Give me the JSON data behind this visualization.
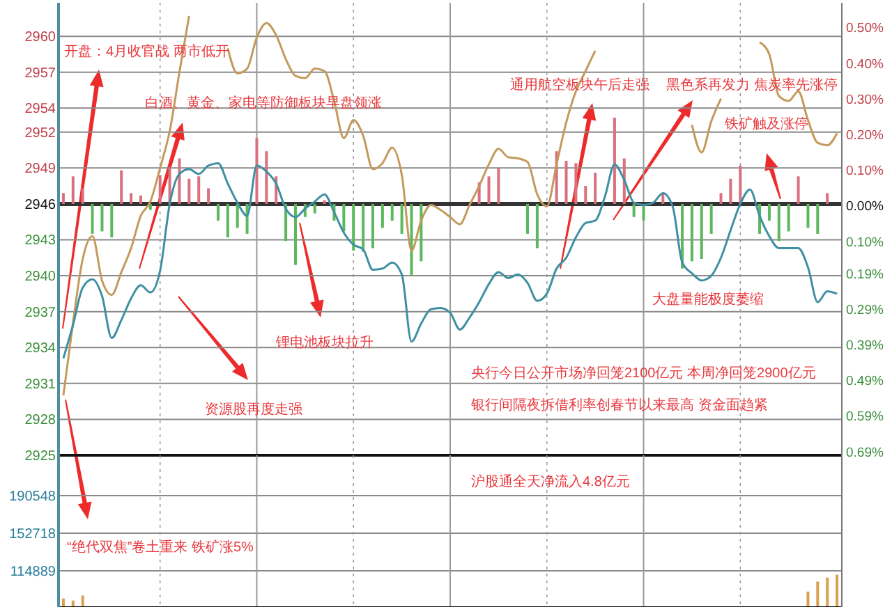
{
  "chart_data": [
    {
      "type": "line",
      "categories": [
        null,
        null,
        null,
        null,
        null,
        null,
        null,
        null,
        null,
        null,
        null,
        null,
        null,
        null,
        null,
        null,
        null,
        null,
        null,
        null,
        null,
        null,
        null,
        null,
        null,
        null,
        null,
        null,
        null,
        null,
        null,
        null,
        null,
        null,
        null,
        null,
        null,
        null,
        null,
        null,
        null,
        null,
        null,
        null,
        null,
        null,
        null,
        null,
        null,
        null,
        null,
        null,
        null,
        null,
        null,
        null,
        null,
        null,
        null,
        null,
        null,
        null,
        null,
        null,
        null,
        null,
        null,
        null,
        null,
        null,
        null,
        null,
        null,
        null,
        null,
        null,
        null,
        null,
        null,
        null,
        null
      ],
      "ylim": [
        2925,
        2962.8
      ],
      "yticks": [
        2925,
        2928,
        2931,
        2934,
        2937,
        2940,
        2943,
        2946,
        2949,
        2952,
        2954,
        2957,
        2960
      ],
      "y2lim": [
        -0.7,
        0.57
      ],
      "y2ticks": [
        {
          "value": -0.69,
          "label": "0.69%"
        },
        {
          "value": -0.59,
          "label": "0.59%"
        },
        {
          "value": -0.49,
          "label": "0.49%"
        },
        {
          "value": -0.39,
          "label": "0.39%"
        },
        {
          "value": -0.29,
          "label": "0.29%"
        },
        {
          "value": -0.19,
          "label": "0.19%"
        },
        {
          "value": -0.1,
          "label": "0.10%"
        },
        {
          "value": 0,
          "label": "0.00%"
        },
        {
          "value": 0.1,
          "label": "0.10%"
        },
        {
          "value": 0.2,
          "label": "0.20%"
        },
        {
          "value": 0.3,
          "label": "0.30%"
        },
        {
          "value": 0.4,
          "label": "0.40%"
        },
        {
          "value": 0.5,
          "label": "0.50%"
        }
      ],
      "grid": true,
      "tick_labels": "y",
      "ref_lines": [
        {
          "axis": "y",
          "value": 2946,
          "color": "#333333"
        }
      ],
      "series": [
        {
          "type": "bar",
          "base": [
            2946,
            2946,
            2946,
            2946,
            2946,
            2946,
            2946,
            2946,
            2946,
            2946,
            2946,
            2946,
            2946,
            2946,
            2946,
            2946,
            2946,
            2946,
            2946,
            2946,
            2946,
            2946,
            2946,
            2946,
            2946,
            2946,
            2946,
            2946,
            2946,
            2946,
            2946,
            2946,
            2946,
            2946,
            2946,
            2946,
            2946,
            2946,
            null,
            null,
            null,
            null,
            null,
            2946,
            2946,
            2946,
            null,
            null,
            2946,
            2946,
            null,
            2946,
            2946,
            2946,
            2946,
            2946,
            null,
            2946,
            2946,
            2946,
            2946,
            null,
            2946,
            null,
            2946,
            2946,
            2946,
            2946,
            2946,
            2946,
            2946,
            null,
            2946,
            2946,
            2946,
            2946,
            2946,
            2946,
            2946,
            2946,
            null
          ],
          "values": [
            0.9,
            2.3,
            1.3,
            -2.5,
            -2.3,
            -2.8,
            2.8,
            0.9,
            0.7,
            -0.5,
            2.4,
            3.0,
            3.8,
            2.1,
            2.3,
            1.3,
            -1.4,
            -2.8,
            -2.0,
            -2.5,
            5.5,
            4.4,
            2.3,
            -3.1,
            -5.1,
            -1.1,
            -0.8,
            0.3,
            -1.4,
            -2.3,
            -3.9,
            -4.0,
            -3.7,
            -2.0,
            -1.4,
            -2.5,
            -6.0,
            -4.8,
            null,
            null,
            null,
            null,
            null,
            1.8,
            2.3,
            3.0,
            null,
            null,
            -2.5,
            -3.7,
            null,
            4.4,
            3.6,
            3.4,
            1.5,
            2.6,
            null,
            7.2,
            3.8,
            -1.1,
            -1.4,
            null,
            0.9,
            null,
            -5.4,
            -4.8,
            -4.6,
            -2.5,
            0.9,
            2.1,
            3.2,
            null,
            -2.5,
            -1.4,
            -3.1,
            -2.3,
            2.3,
            -2.0,
            -2.5,
            0.9,
            null
          ],
          "colors": [
            "#d9707e",
            "#d9707e",
            "#d9707e",
            "#5cb85c",
            "#5cb85c",
            "#5cb85c",
            "#d9707e",
            "#d9707e",
            "#d9707e",
            "#5cb85c",
            "#d9707e",
            "#d9707e",
            "#d9707e",
            "#d9707e",
            "#d9707e",
            "#d9707e",
            "#5cb85c",
            "#5cb85c",
            "#5cb85c",
            "#5cb85c",
            "#d9707e",
            "#d9707e",
            "#d9707e",
            "#5cb85c",
            "#5cb85c",
            "#5cb85c",
            "#5cb85c",
            "#d9707e",
            "#5cb85c",
            "#5cb85c",
            "#5cb85c",
            "#5cb85c",
            "#5cb85c",
            "#5cb85c",
            "#5cb85c",
            "#5cb85c",
            "#5cb85c",
            "#5cb85c",
            null,
            null,
            null,
            null,
            null,
            "#d9707e",
            "#d9707e",
            "#d9707e",
            null,
            null,
            "#5cb85c",
            "#5cb85c",
            null,
            "#d9707e",
            "#d9707e",
            "#d9707e",
            "#d9707e",
            "#d9707e",
            null,
            "#d9707e",
            "#d9707e",
            "#5cb85c",
            "#5cb85c",
            null,
            "#d9707e",
            null,
            "#5cb85c",
            "#5cb85c",
            "#5cb85c",
            "#5cb85c",
            "#d9707e",
            "#d9707e",
            "#d9707e",
            null,
            "#5cb85c",
            "#5cb85c",
            "#5cb85c",
            "#5cb85c",
            "#d9707e",
            "#5cb85c",
            "#5cb85c",
            "#d9707e",
            null
          ]
        },
        {
          "color": "#c49a5c",
          "values": [
            2930.0,
            2936.1,
            2941.4,
            2943.3,
            2939.6,
            2938.4,
            2940.3,
            2942.3,
            2945.0,
            2946.2,
            2949.0,
            2952.1,
            2957.0,
            2961.7,
            null,
            null,
            null,
            2959.0,
            2956.9,
            2957.3,
            2959.9,
            2961.1,
            2960.1,
            2958.1,
            2956.7,
            2956.5,
            2957.3,
            2957.1,
            2954.6,
            2951.5,
            2953.0,
            2951.7,
            2948.9,
            2949.4,
            2950.7,
            2948.4,
            2942.1,
            2944.6,
            2945.9,
            2945.5,
            2944.9,
            2944.3,
            2945.9,
            2947.5,
            2949.3,
            2950.6,
            2949.9,
            2949.8,
            2949.5,
            2946.8,
            2945.8,
            2949.3,
            2952.8,
            2955.4,
            2957.1,
            2958.8,
            null,
            null,
            null,
            null,
            null,
            null,
            null,
            null,
            null,
            2952.6,
            2950.3,
            2952.9,
            2954.8,
            null,
            null,
            null,
            2959.5,
            2958.5,
            2955.0,
            2954.6,
            2955.4,
            2953.0,
            2951.1,
            2950.9,
            2951.9
          ]
        },
        {
          "color": "#3f8fa3",
          "values": [
            2933.1,
            2935.9,
            2939.0,
            2939.7,
            2938.3,
            2934.8,
            2936.3,
            2938.1,
            2939.2,
            2938.6,
            2940.4,
            2946.0,
            2948.5,
            2948.9,
            2948.5,
            2949.2,
            2949.4,
            2947.7,
            2946.1,
            2945.0,
            2949.2,
            2948.7,
            2947.7,
            2945.6,
            2944.9,
            2945.6,
            2946.2,
            2946.8,
            2945.3,
            2943.6,
            2942.6,
            2942.2,
            2940.5,
            2940.6,
            2941.1,
            2940.1,
            2934.5,
            2936.0,
            2937.2,
            2937.3,
            2936.9,
            2935.5,
            2936.5,
            2937.8,
            2939.3,
            2940.3,
            2939.8,
            2940.1,
            2939.4,
            2937.9,
            2938.5,
            2940.6,
            2941.5,
            2943.2,
            2944.4,
            2944.6,
            2946.6,
            2949.3,
            2948.0,
            2946.1,
            2945.9,
            2946.1,
            2946.9,
            2945.8,
            2941.1,
            2940.2,
            2939.6,
            2940.0,
            2941.5,
            2943.8,
            2946.0,
            2947.2,
            2945.0,
            2943.3,
            2942.3,
            2942.3,
            2942.3,
            2940.7,
            2937.8,
            2938.7,
            2938.5
          ]
        }
      ],
      "annotations": [
        "开盘：4月收官战 两市低开",
        "白酒、黄金、家电等防御板块早盘领涨",
        "通用航空板块午后走强",
        "黑色系再发力 焦炭率先涨停",
        "铁矿触及涨停",
        "大盘量能极度萎缩",
        "锂电池板块拉升",
        "资源股再度走强",
        "央行今日公开市场净回笼2100亿元 本周净回笼2900亿元",
        "银行间隔夜拆借利率创春节以来最高 资金面趋紧",
        "沪股通全天净流入4.8亿元",
        "“绝代双焦”卷土重来 铁矿涨5%"
      ]
    },
    {
      "type": "bar",
      "categories": [
        null,
        null,
        null,
        null,
        null,
        null,
        null,
        null,
        null,
        null,
        null,
        null,
        null,
        null,
        null,
        null,
        null,
        null,
        null,
        null,
        null,
        null,
        null,
        null,
        null,
        null,
        null,
        null,
        null,
        null,
        null,
        null,
        null,
        null,
        null,
        null,
        null,
        null,
        null,
        null,
        null,
        null,
        null,
        null,
        null,
        null,
        null,
        null,
        null,
        null,
        null,
        null,
        null,
        null,
        null,
        null,
        null,
        null,
        null,
        null,
        null,
        null,
        null,
        null,
        null,
        null,
        null,
        null,
        null,
        null,
        null,
        null,
        null,
        null,
        null,
        null,
        null,
        null,
        null,
        null,
        null
      ],
      "ylim": [
        78460,
        231180
      ],
      "yticks": [
        114889,
        152718,
        190548
      ],
      "grid": true,
      "tick_labels": "y",
      "series": [
        {
          "color": "#d9a050",
          "values": [
            87000,
            85000,
            90000,
            null,
            null,
            null,
            null,
            null,
            null,
            null,
            null,
            null,
            null,
            null,
            null,
            null,
            null,
            null,
            null,
            null,
            null,
            null,
            null,
            null,
            null,
            null,
            null,
            null,
            null,
            null,
            null,
            null,
            null,
            null,
            null,
            null,
            null,
            null,
            null,
            null,
            null,
            null,
            null,
            null,
            null,
            null,
            null,
            null,
            null,
            null,
            null,
            null,
            null,
            null,
            null,
            null,
            null,
            null,
            null,
            null,
            null,
            null,
            null,
            null,
            null,
            null,
            null,
            null,
            null,
            null,
            null,
            null,
            null,
            null,
            null,
            null,
            null,
            94000,
            104000,
            108000,
            111000
          ]
        }
      ]
    }
  ]
}
